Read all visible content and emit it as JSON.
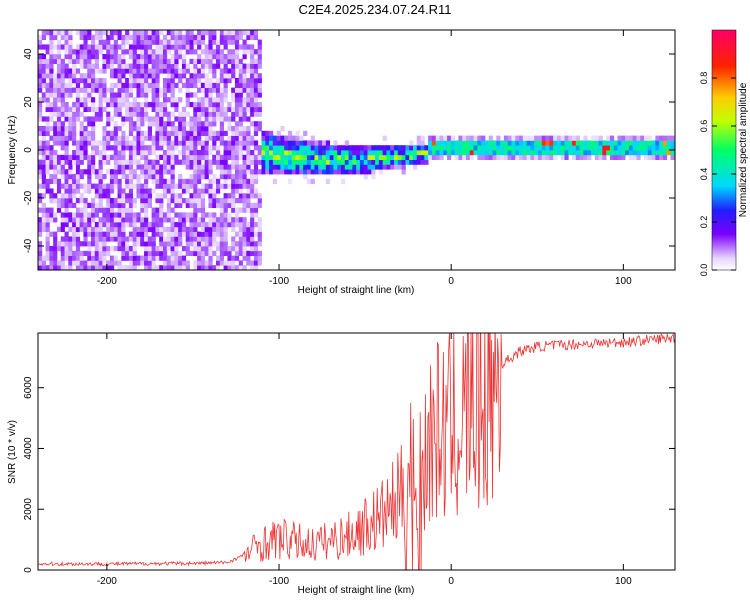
{
  "figure": {
    "title": "C2E4.2025.234.07.24.R11"
  },
  "chart_data": [
    {
      "type": "heatmap",
      "xlabel": "Height of straight line (km)",
      "ylabel": "Frequency (Hz)",
      "xlim": [
        -240,
        130
      ],
      "ylim": [
        -50,
        50
      ],
      "xticks": [
        -200,
        -100,
        0,
        100
      ],
      "yticks": [
        -40,
        -20,
        0,
        20,
        40
      ],
      "colorbar": {
        "label": "Normalized spectral amplitude",
        "range": [
          0,
          1
        ],
        "ticks": [
          "0.0",
          "0.2",
          "0.4",
          "0.6",
          "0.8"
        ],
        "tick_values": [
          0.0,
          0.2,
          0.4,
          0.6,
          0.8
        ]
      },
      "regions": [
        {
          "description": "broadband noise",
          "x_range": [
            -240,
            -112
          ],
          "freq_range": [
            -50,
            50
          ],
          "amplitude": [
            0.0,
            0.15
          ]
        },
        {
          "description": "spreading signal band",
          "x_range": [
            -112,
            -15
          ],
          "freq_range": [
            -12,
            6
          ],
          "amplitude": [
            0.1,
            0.95
          ]
        },
        {
          "description": "narrow carrier line",
          "x_range": [
            -15,
            130
          ],
          "freq_range": [
            -2,
            2
          ],
          "amplitude": [
            0.3,
            1.0
          ]
        }
      ]
    },
    {
      "type": "line",
      "xlabel": "Height of straight line (km)",
      "ylabel": "SNR (10 * v/v)",
      "xlim": [
        -240,
        130
      ],
      "ylim": [
        0,
        7800
      ],
      "xticks": [
        -200,
        -100,
        0,
        100
      ],
      "yticks": [
        0,
        2000,
        4000,
        6000
      ],
      "series": [
        {
          "name": "SNR",
          "color": "#ee3333",
          "x": [
            -240,
            -200,
            -150,
            -130,
            -120,
            -112,
            -100,
            -80,
            -60,
            -40,
            -30,
            -25,
            -22,
            -20,
            -15,
            -10,
            0,
            10,
            20,
            30,
            40,
            50,
            60,
            80,
            100,
            130
          ],
          "y": [
            200,
            200,
            220,
            250,
            500,
            900,
            1100,
            900,
            1200,
            1900,
            2500,
            3000,
            4500,
            3500,
            4200,
            4800,
            5000,
            5600,
            6300,
            6800,
            7200,
            7350,
            7400,
            7450,
            7500,
            7650
          ]
        }
      ]
    }
  ]
}
